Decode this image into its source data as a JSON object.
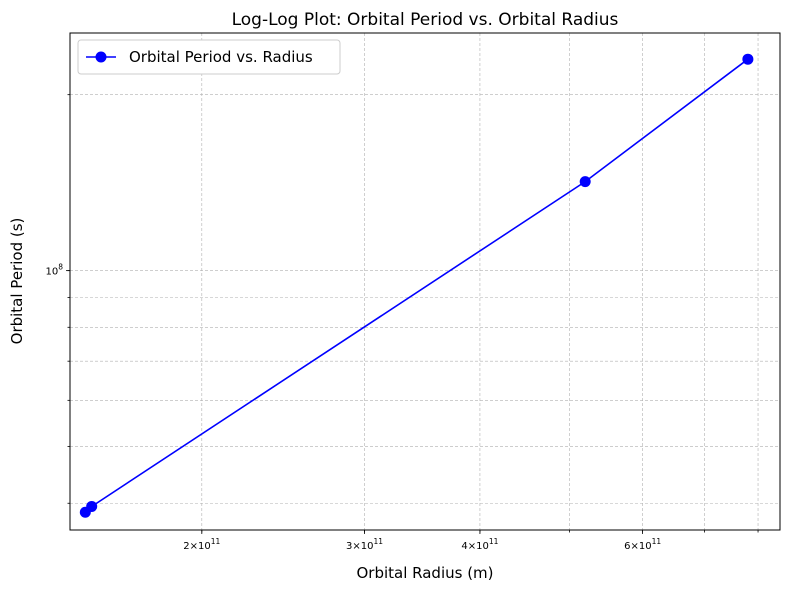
{
  "chart_data": {
    "type": "line",
    "title": "Log-Log Plot: Orbital Period vs. Orbital Radius",
    "xlabel": "Orbital Radius (m)",
    "ylabel": "Orbital Period (s)",
    "xscale": "log",
    "yscale": "log",
    "xlim": [
      144000000000.0,
      845000000000.0
    ],
    "ylim": [
      36000000.0,
      255000000.0
    ],
    "x_ticks": [
      {
        "value": 200000000000.0,
        "mantissa": "2",
        "exp": "11"
      },
      {
        "value": 300000000000.0,
        "mantissa": "3",
        "exp": "11"
      },
      {
        "value": 400000000000.0,
        "mantissa": "4",
        "exp": "11"
      },
      {
        "value": 600000000000.0,
        "mantissa": "6",
        "exp": "11"
      }
    ],
    "y_ticks": [
      {
        "value": 100000000.0,
        "mantissa": "",
        "exp": "8"
      }
    ],
    "grid": true,
    "legend_position": "upper-left",
    "series": [
      {
        "name": "Orbital Period vs. Radius",
        "color": "#0000ff",
        "marker": "circle",
        "x": [
          149600000000.0,
          152000000000.0,
          520000000000.0,
          780000000000.0
        ],
        "y": [
          38600000.0,
          39500000.0,
          142000000.0,
          230000000.0
        ]
      }
    ]
  }
}
